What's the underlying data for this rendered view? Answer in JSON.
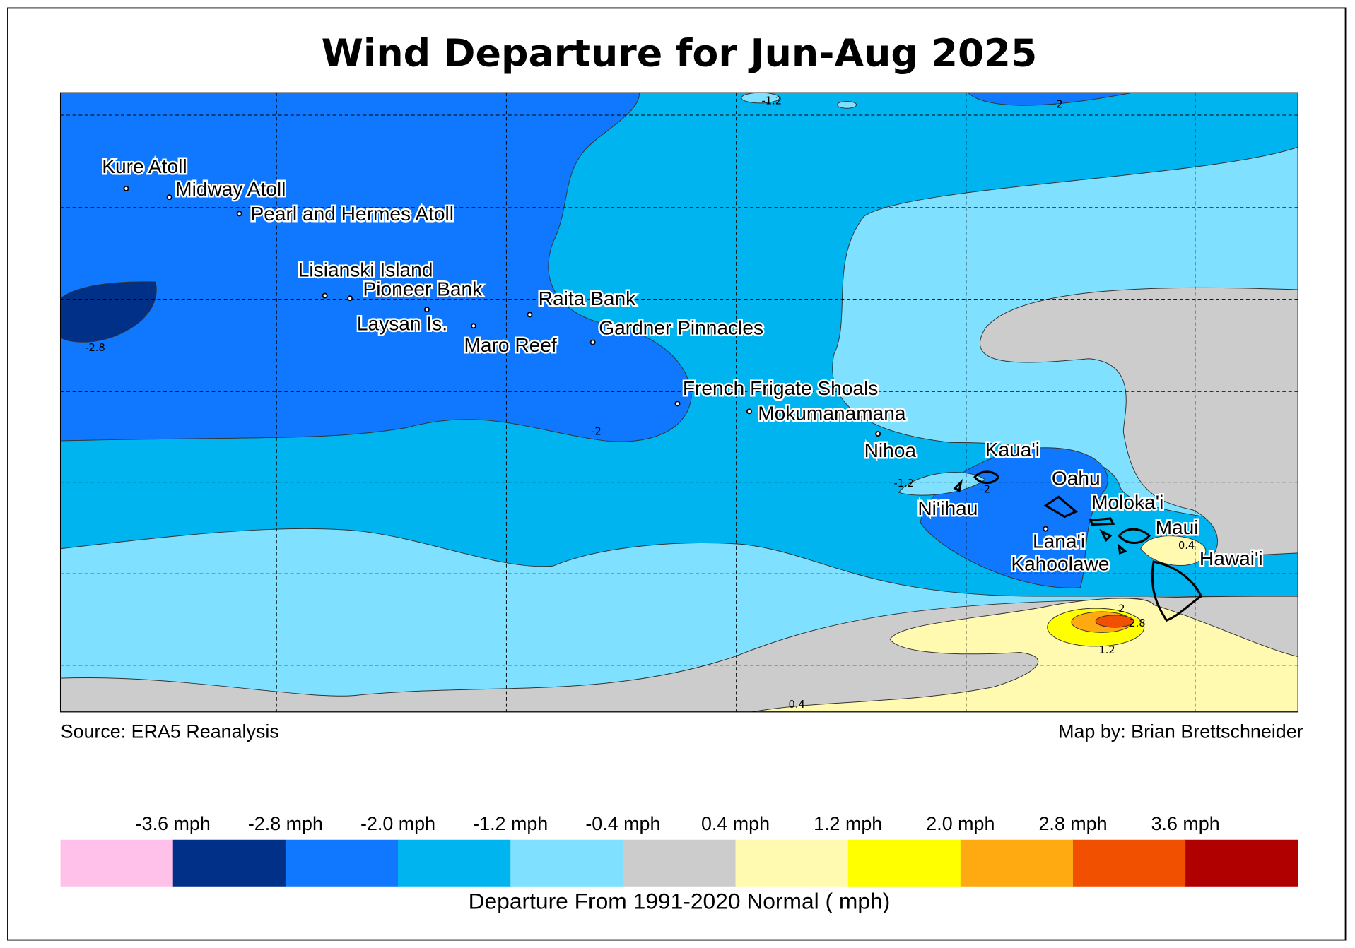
{
  "title": "Wind Departure for Jun-Aug 2025",
  "source": "Source: ERA5 Reanalysis",
  "credit": "Map by: Brian Brettschneider",
  "places": [
    "Kure Atoll",
    "Midway Atoll",
    "Pearl and Hermes Atoll",
    "Lisianski Island",
    "Pioneer Bank",
    "Laysan Is.",
    "Maro Reef",
    "Raita Bank",
    "Gardner Pinnacles",
    "French Frigate Shoals",
    "Mokumanamana",
    "Nihoa",
    "Kaua'i",
    "Oahu",
    "Ni'ihau",
    "Moloka'i",
    "Maui",
    "Lana'i",
    "Kahoolawe",
    "Hawai'i"
  ],
  "contour_labels": [
    "-2.8",
    "-1.2",
    "-2",
    "-2",
    "-1.2",
    "-2",
    "0.4",
    "2",
    "2.8",
    "1.2",
    "0.4"
  ],
  "legend": {
    "title": "Departure From 1991-2020 Normal ( mph)",
    "labels": [
      "-3.6 mph",
      "-2.8 mph",
      "-2.0 mph",
      "-1.2 mph",
      "-0.4 mph",
      "0.4 mph",
      "1.2 mph",
      "2.0 mph",
      "2.8 mph",
      "3.6 mph"
    ],
    "colors": [
      "#ffc0ea",
      "#003087",
      "#0f78ff",
      "#00b4f0",
      "#7fe0ff",
      "#cccccc",
      "#fffab0",
      "#ffff00",
      "#ffaa11",
      "#f05000",
      "#b00000"
    ]
  }
}
